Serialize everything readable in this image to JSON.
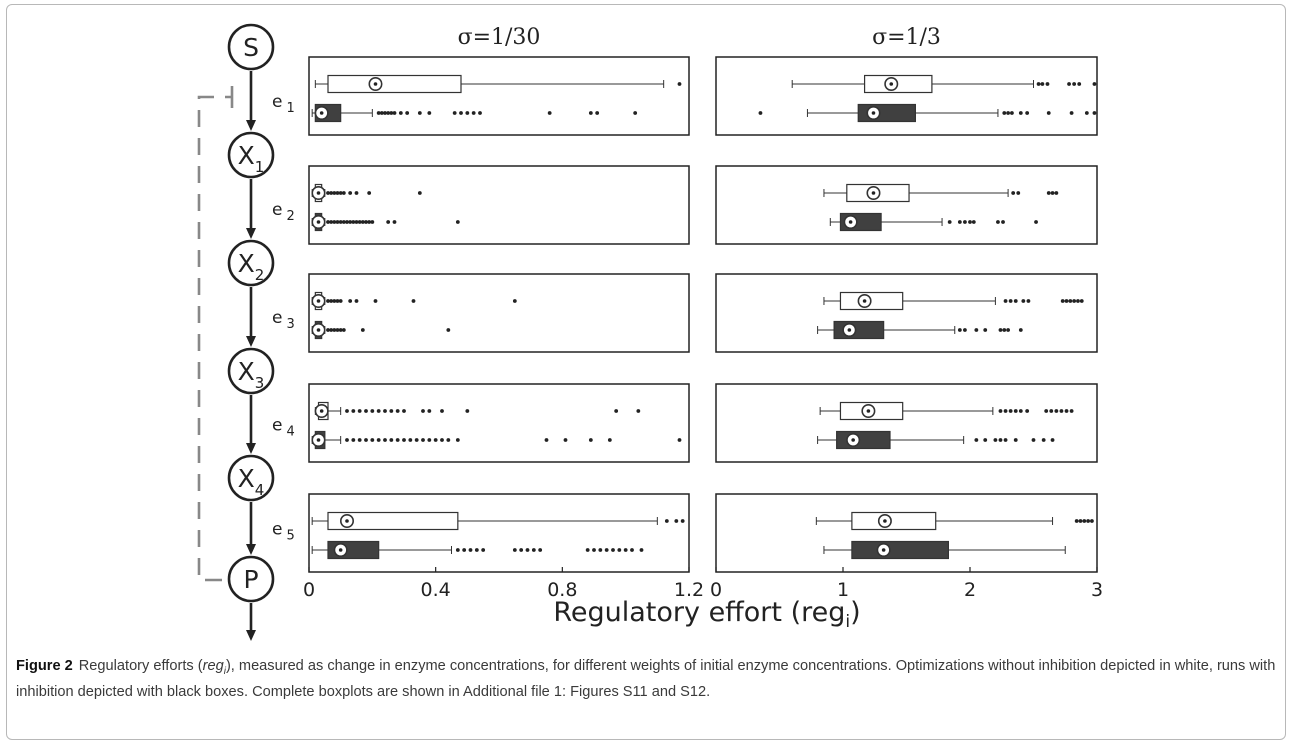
{
  "figure": {
    "pathway_nodes": [
      "S",
      "X",
      "X",
      "X",
      "X",
      "P"
    ],
    "node_subscripts": [
      "",
      "1",
      "2",
      "3",
      "4",
      ""
    ],
    "enzyme_labels": [
      "e",
      "e",
      "e",
      "e",
      "e"
    ],
    "enzyme_subscripts": [
      "1",
      "2",
      "3",
      "4",
      "5"
    ],
    "column_titles": [
      "σ=1/30",
      "σ=1/3"
    ],
    "x_axis_label": "Regulatory effort (reg",
    "x_axis_label_sub": "i",
    "x_axis_label_end": ")",
    "box_colors": {
      "without_inhibition": "#ffffff",
      "with_inhibition": "#404040"
    }
  },
  "chart_data": [
    {
      "type": "boxplot",
      "title": "σ=1/30",
      "xlim": [
        0,
        1.2
      ],
      "xticks": [
        0,
        0.4,
        0.8,
        1.2
      ],
      "xtick_labels": [
        "0",
        "0.4",
        "0.8",
        "1.2"
      ],
      "panels": [
        {
          "enzyme": "e1",
          "series": [
            {
              "group": "without inhibition",
              "q1": 0.06,
              "median": 0.21,
              "q3": 0.48,
              "whisker_low": 0.02,
              "whisker_high": 1.12,
              "outliers": [
                1.17
              ]
            },
            {
              "group": "with inhibition",
              "q1": 0.02,
              "median": 0.04,
              "q3": 0.1,
              "whisker_low": 0.01,
              "whisker_high": 0.2,
              "outliers": [
                0.22,
                0.23,
                0.24,
                0.25,
                0.26,
                0.27,
                0.29,
                0.31,
                0.35,
                0.38,
                0.46,
                0.48,
                0.5,
                0.52,
                0.54,
                0.76,
                0.89,
                0.91,
                1.03
              ]
            }
          ]
        },
        {
          "enzyme": "e2",
          "series": [
            {
              "group": "without inhibition",
              "q1": 0.02,
              "median": 0.03,
              "q3": 0.04,
              "whisker_low": 0.01,
              "whisker_high": 0.05,
              "outliers": [
                0.06,
                0.07,
                0.08,
                0.09,
                0.1,
                0.11,
                0.13,
                0.15,
                0.19,
                0.35
              ]
            },
            {
              "group": "with inhibition",
              "q1": 0.02,
              "median": 0.03,
              "q3": 0.04,
              "whisker_low": 0.01,
              "whisker_high": 0.05,
              "outliers": [
                0.06,
                0.07,
                0.08,
                0.09,
                0.1,
                0.11,
                0.12,
                0.13,
                0.14,
                0.15,
                0.16,
                0.17,
                0.18,
                0.19,
                0.2,
                0.25,
                0.27,
                0.47
              ]
            }
          ]
        },
        {
          "enzyme": "e3",
          "series": [
            {
              "group": "without inhibition",
              "q1": 0.02,
              "median": 0.03,
              "q3": 0.04,
              "whisker_low": 0.01,
              "whisker_high": 0.05,
              "outliers": [
                0.06,
                0.07,
                0.08,
                0.09,
                0.1,
                0.13,
                0.15,
                0.21,
                0.33,
                0.65
              ]
            },
            {
              "group": "with inhibition",
              "q1": 0.02,
              "median": 0.03,
              "q3": 0.04,
              "whisker_low": 0.01,
              "whisker_high": 0.05,
              "outliers": [
                0.06,
                0.07,
                0.08,
                0.09,
                0.1,
                0.11,
                0.17,
                0.44
              ]
            }
          ]
        },
        {
          "enzyme": "e4",
          "series": [
            {
              "group": "without inhibition",
              "q1": 0.03,
              "median": 0.04,
              "q3": 0.06,
              "whisker_low": 0.02,
              "whisker_high": 0.1,
              "outliers": [
                0.12,
                0.14,
                0.16,
                0.18,
                0.2,
                0.22,
                0.24,
                0.26,
                0.28,
                0.3,
                0.36,
                0.38,
                0.42,
                0.5,
                0.97,
                1.04
              ]
            },
            {
              "group": "with inhibition",
              "q1": 0.02,
              "median": 0.03,
              "q3": 0.05,
              "whisker_low": 0.01,
              "whisker_high": 0.1,
              "outliers": [
                0.12,
                0.14,
                0.16,
                0.18,
                0.2,
                0.22,
                0.24,
                0.26,
                0.28,
                0.3,
                0.32,
                0.34,
                0.36,
                0.38,
                0.4,
                0.42,
                0.44,
                0.47,
                0.75,
                0.81,
                0.89,
                0.95,
                1.17
              ]
            }
          ]
        },
        {
          "enzyme": "e5",
          "series": [
            {
              "group": "without inhibition",
              "q1": 0.06,
              "median": 0.12,
              "q3": 0.47,
              "whisker_low": 0.01,
              "whisker_high": 1.1,
              "outliers": [
                1.13,
                1.16,
                1.18
              ]
            },
            {
              "group": "with inhibition",
              "q1": 0.06,
              "median": 0.1,
              "q3": 0.22,
              "whisker_low": 0.01,
              "whisker_high": 0.45,
              "outliers": [
                0.47,
                0.49,
                0.51,
                0.53,
                0.55,
                0.65,
                0.67,
                0.69,
                0.71,
                0.73,
                0.88,
                0.9,
                0.92,
                0.94,
                0.96,
                0.98,
                1.0,
                1.02,
                1.05
              ]
            }
          ]
        }
      ]
    },
    {
      "type": "boxplot",
      "title": "σ=1/3",
      "xlim": [
        0,
        3
      ],
      "xticks": [
        0,
        1,
        2,
        3
      ],
      "xtick_labels": [
        "0",
        "1",
        "2",
        "3"
      ],
      "panels": [
        {
          "enzyme": "e1",
          "series": [
            {
              "group": "without inhibition",
              "q1": 1.17,
              "median": 1.38,
              "q3": 1.7,
              "whisker_low": 0.6,
              "whisker_high": 2.5,
              "outliers": [
                2.54,
                2.57,
                2.61,
                2.78,
                2.82,
                2.86,
                2.98
              ]
            },
            {
              "group": "with inhibition",
              "q1": 1.12,
              "median": 1.24,
              "q3": 1.57,
              "whisker_low": 0.72,
              "whisker_high": 2.22,
              "outliers": [
                0.35,
                2.27,
                2.3,
                2.33,
                2.4,
                2.45,
                2.62,
                2.8,
                2.92,
                2.98
              ]
            }
          ]
        },
        {
          "enzyme": "e2",
          "series": [
            {
              "group": "without inhibition",
              "q1": 1.03,
              "median": 1.24,
              "q3": 1.52,
              "whisker_low": 0.85,
              "whisker_high": 2.3,
              "outliers": [
                2.34,
                2.38,
                2.62,
                2.65,
                2.68
              ]
            },
            {
              "group": "with inhibition",
              "q1": 0.98,
              "median": 1.06,
              "q3": 1.3,
              "whisker_low": 0.9,
              "whisker_high": 1.78,
              "outliers": [
                1.84,
                1.92,
                1.96,
                2.0,
                2.03,
                2.22,
                2.26,
                2.52
              ]
            }
          ]
        },
        {
          "enzyme": "e3",
          "series": [
            {
              "group": "without inhibition",
              "q1": 0.98,
              "median": 1.17,
              "q3": 1.47,
              "whisker_low": 0.85,
              "whisker_high": 2.2,
              "outliers": [
                2.28,
                2.32,
                2.36,
                2.42,
                2.46,
                2.73,
                2.76,
                2.79,
                2.82,
                2.85,
                2.88
              ]
            },
            {
              "group": "with inhibition",
              "q1": 0.93,
              "median": 1.05,
              "q3": 1.32,
              "whisker_low": 0.8,
              "whisker_high": 1.88,
              "outliers": [
                1.92,
                1.96,
                2.05,
                2.12,
                2.24,
                2.27,
                2.3,
                2.4
              ]
            }
          ]
        },
        {
          "enzyme": "e4",
          "series": [
            {
              "group": "without inhibition",
              "q1": 0.98,
              "median": 1.2,
              "q3": 1.47,
              "whisker_low": 0.82,
              "whisker_high": 2.18,
              "outliers": [
                2.24,
                2.28,
                2.32,
                2.36,
                2.4,
                2.45,
                2.6,
                2.64,
                2.68,
                2.72,
                2.76,
                2.8
              ]
            },
            {
              "group": "with inhibition",
              "q1": 0.95,
              "median": 1.08,
              "q3": 1.37,
              "whisker_low": 0.8,
              "whisker_high": 1.95,
              "outliers": [
                2.05,
                2.12,
                2.2,
                2.24,
                2.28,
                2.36,
                2.5,
                2.58,
                2.65
              ]
            }
          ]
        },
        {
          "enzyme": "e5",
          "series": [
            {
              "group": "without inhibition",
              "q1": 1.07,
              "median": 1.33,
              "q3": 1.73,
              "whisker_low": 0.79,
              "whisker_high": 2.65,
              "outliers": [
                2.84,
                2.87,
                2.9,
                2.93,
                2.96
              ]
            },
            {
              "group": "with inhibition",
              "q1": 1.07,
              "median": 1.32,
              "q3": 1.83,
              "whisker_low": 0.85,
              "whisker_high": 2.75,
              "outliers": []
            }
          ]
        }
      ]
    }
  ],
  "caption": {
    "label": "Figure 2",
    "text_before": "Regulatory efforts (",
    "text_italic": "reg",
    "text_italic_sub": "i",
    "text_after": "), measured as change in enzyme concentrations, for different weights of initial enzyme concentrations. Optimizations without inhibition depicted in white, runs with inhibition depicted with black boxes. Complete boxplots are shown in Additional file 1: Figures S11 and S12."
  }
}
